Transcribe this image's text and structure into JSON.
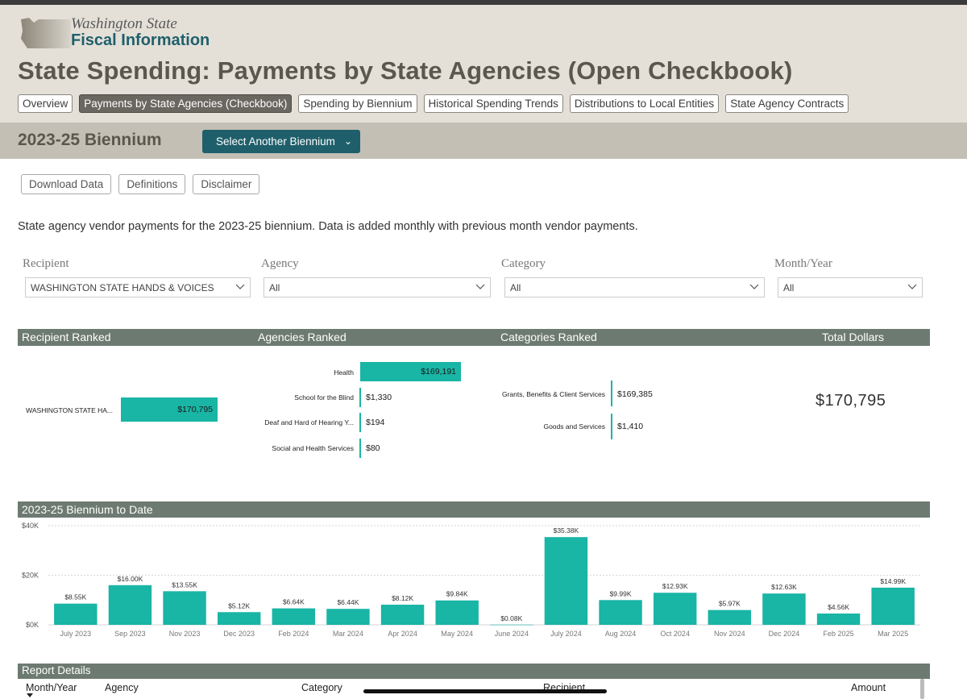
{
  "logo": {
    "line1": "Washington State",
    "line2": "Fiscal Information"
  },
  "page_title": "State Spending: Payments by State Agencies (Open Checkbook)",
  "nav_tabs": [
    {
      "label": "Overview",
      "active": false
    },
    {
      "label": "Payments by State Agencies (Checkbook)",
      "active": true
    },
    {
      "label": "Spending by Biennium",
      "active": false
    },
    {
      "label": "Historical Spending Trends",
      "active": false
    },
    {
      "label": "Distributions to Local Entities",
      "active": false
    },
    {
      "label": "State Agency Contracts",
      "active": false
    }
  ],
  "biennium": {
    "title": "2023-25 Biennium",
    "select_label": "Select Another Biennium"
  },
  "buttons": {
    "download": "Download Data",
    "definitions": "Definitions",
    "disclaimer": "Disclaimer"
  },
  "intro_text": "State agency vendor payments for the 2023-25 biennium. Data is added monthly with previous month vendor payments.",
  "filters": {
    "recipient": {
      "label": "Recipient",
      "value": "WASHINGTON STATE HANDS & VOICES"
    },
    "agency": {
      "label": "Agency",
      "value": "All"
    },
    "category": {
      "label": "Category",
      "value": "All"
    },
    "month_year": {
      "label": "Month/Year",
      "value": "All"
    }
  },
  "ranked": {
    "recipient_header": "Recipient Ranked",
    "agencies_header": "Agencies Ranked",
    "categories_header": "Categories Ranked",
    "total_header": "Total Dollars",
    "recipients": [
      {
        "label": "WASHINGTON STATE HA...",
        "value": "$170,795"
      }
    ],
    "agencies": [
      {
        "label": "Health",
        "value": "$169,191"
      },
      {
        "label": "School for the Blind",
        "value": "$1,330"
      },
      {
        "label": "Deaf and Hard of Hearing Y...",
        "value": "$194"
      },
      {
        "label": "Social and Health Services",
        "value": "$80"
      }
    ],
    "categories": [
      {
        "label": "Grants, Benefits & Client Services",
        "value": "$169,385"
      },
      {
        "label": "Goods and Services",
        "value": "$1,410"
      }
    ],
    "total_value": "$170,795"
  },
  "chart_band_title": "2023-25  Biennium to Date",
  "chart_data": {
    "type": "bar",
    "title": "2023-25  Biennium to Date",
    "categories": [
      "July 2023",
      "Sep 2023",
      "Nov 2023",
      "Dec 2023",
      "Feb 2024",
      "Mar 2024",
      "Apr 2024",
      "May 2024",
      "June 2024",
      "July 2024",
      "Aug 2024",
      "Oct 2024",
      "Nov 2024",
      "Dec 2024",
      "Feb 2025",
      "Mar 2025"
    ],
    "values": [
      8550,
      16000,
      13550,
      5120,
      6640,
      6440,
      8120,
      9840,
      80,
      35380,
      9990,
      12930,
      5970,
      12630,
      4560,
      14990
    ],
    "labels": [
      "$8.55K",
      "$16.00K",
      "$13.55K",
      "$5.12K",
      "$6.64K",
      "$6.44K",
      "$8.12K",
      "$9.84K",
      "$0.08K",
      "$35.38K",
      "$9.99K",
      "$12.93K",
      "$5.97K",
      "$12.63K",
      "$4.56K",
      "$14.99K"
    ],
    "yticks": [
      0,
      20000,
      40000
    ],
    "ytick_labels": [
      "$0K",
      "$20K",
      "$40K"
    ],
    "ylim": [
      0,
      40000
    ],
    "xlabel": "",
    "ylabel": "",
    "color": "#19b5a5"
  },
  "report": {
    "title": "Report Details",
    "columns": [
      "Month/Year",
      "Agency",
      "Category",
      "Recipient",
      "Amount"
    ]
  }
}
